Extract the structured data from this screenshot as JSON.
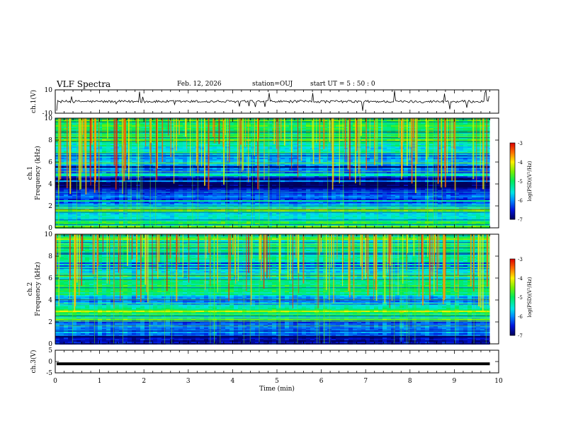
{
  "header": {
    "title": "VLF Spectra",
    "date": "Feb. 12, 2026",
    "station": "station=OUJ",
    "start": "start  UT =   5 : 50 : 0"
  },
  "chart_data": [
    {
      "type": "line",
      "panel": "ch1-waveform",
      "ylabel": "ch.1(V)",
      "ylim": [
        -10,
        10
      ],
      "yticks": [
        "10",
        "-10"
      ],
      "xlim": [
        0,
        10
      ],
      "baseline": 0,
      "color": "#000000"
    },
    {
      "type": "heatmap",
      "panel": "ch1-spectrogram",
      "ylabel": [
        "ch.1",
        "Frequency  (kHz)"
      ],
      "ylim": [
        0,
        10
      ],
      "yticks": [
        "0",
        "2",
        "4",
        "6",
        "8",
        "10"
      ],
      "xlim": [
        0,
        10
      ],
      "data_end_min": 9.8,
      "colorbar": {
        "label": "log(PSD)(V²/Hz)",
        "range": [
          -7,
          -3
        ],
        "ticks": [
          "-3",
          "-4",
          "-5",
          "-6",
          "-7"
        ]
      },
      "profile_freq_khz": [
        0,
        0.5,
        1,
        1.5,
        2,
        2.5,
        3,
        3.5,
        4,
        4.5,
        5,
        5.5,
        6,
        6.5,
        7,
        7.5,
        8,
        8.5,
        9,
        9.5,
        10
      ],
      "profile_log_psd": [
        -4.8,
        -4.6,
        -5.8,
        -5.3,
        -5.6,
        -6.2,
        -6.1,
        -6.3,
        -6.9,
        -6.6,
        -6.2,
        -6.0,
        -5.9,
        -5.7,
        -5.5,
        -5.4,
        -5.2,
        -5.1,
        -5.0,
        -4.9,
        -4.8
      ]
    },
    {
      "type": "heatmap",
      "panel": "ch2-spectrogram",
      "ylabel": [
        "ch.2",
        "Frequency  (kHz)"
      ],
      "ylim": [
        0,
        10
      ],
      "yticks": [
        "0",
        "2",
        "4",
        "6",
        "8",
        "10"
      ],
      "xlim": [
        0,
        10
      ],
      "data_end_min": 9.8,
      "colorbar": {
        "label": "log(PSD)(V²/Hz)",
        "range": [
          -7,
          -3
        ],
        "ticks": [
          "-3",
          "-4",
          "-5",
          "-6",
          "-7"
        ]
      },
      "profile_freq_khz": [
        0,
        0.5,
        1,
        1.5,
        2,
        2.5,
        3,
        3.5,
        4,
        4.5,
        5,
        5.5,
        6,
        6.5,
        7,
        7.5,
        8,
        8.5,
        9,
        9.5,
        10
      ],
      "profile_log_psd": [
        -6.5,
        -6.6,
        -6.0,
        -5.9,
        -6.3,
        -5.2,
        -5.0,
        -5.6,
        -6.3,
        -5.3,
        -5.0,
        -5.1,
        -5.3,
        -5.5,
        -5.6,
        -5.5,
        -5.4,
        -5.3,
        -5.3,
        -5.2,
        -5.2
      ]
    },
    {
      "type": "line",
      "panel": "ch3-waveform",
      "ylabel": "ch.3(V)",
      "ylim": [
        -5,
        5
      ],
      "yticks": [
        "5",
        "0",
        "-5"
      ],
      "xlim": [
        0,
        10
      ],
      "baseline": -1,
      "color": "#000000"
    }
  ],
  "xaxis": {
    "label": "Time  (min)",
    "ticks": [
      "0",
      "1",
      "2",
      "3",
      "4",
      "5",
      "6",
      "7",
      "8",
      "9",
      "10"
    ]
  }
}
